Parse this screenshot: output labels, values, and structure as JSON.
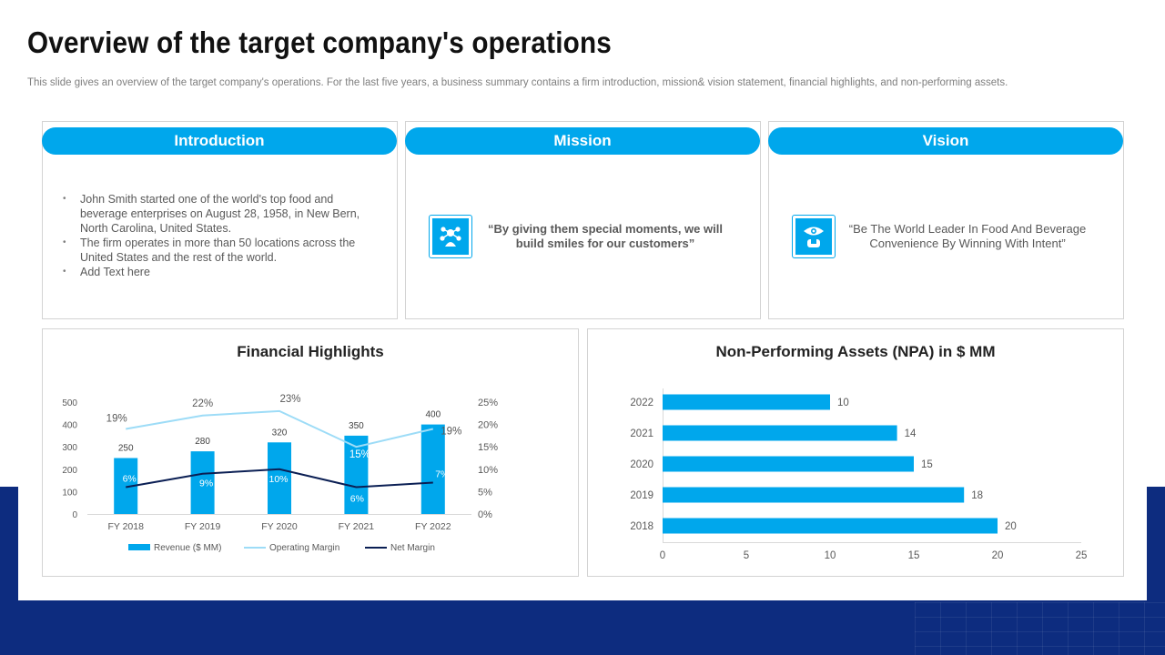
{
  "header": {
    "title": "Overview of the target company's operations",
    "subtitle": "This slide gives an overview of the target company's operations. For the last five years,  a business summary contains a firm introduction, mission& vision statement, financial highlights, and non-performing assets."
  },
  "introduction": {
    "heading": "Introduction",
    "bullets": [
      "John Smith started one of the world's  top food and beverage  enterprises on August 28, 1958, in New Bern, North Carolina,  United States.",
      "The firm operates in more than 50 locations across the United States and the rest of the world.",
      "Add Text here"
    ]
  },
  "mission": {
    "heading": "Mission",
    "icon": "team-network-icon",
    "quote": "“By giving them special moments,  we will build smiles for our customers”"
  },
  "vision": {
    "heading": "Vision",
    "icon": "eye-presenter-icon",
    "quote": "“Be The  World Leader  In Food And Beverage Convenience  By Winning With Intent”"
  },
  "colors": {
    "accent": "#00a7ec",
    "navy": "#0d2c7f",
    "line_light": "#9ddcf7",
    "line_dark": "#0b1f54"
  },
  "chart_data": [
    {
      "type": "bar",
      "title": "Financial Highlights",
      "categories": [
        "FY 2018",
        "FY 2019",
        "FY 2020",
        "FY 2021",
        "FY 2022"
      ],
      "series": [
        {
          "name": "Revenue ($ MM)",
          "kind": "bar",
          "axis": "left",
          "values": [
            250,
            280,
            320,
            350,
            400
          ],
          "labels": [
            "250",
            "280",
            "320",
            "350",
            "400"
          ]
        },
        {
          "name": "Operating Margin",
          "kind": "line",
          "axis": "right",
          "values": [
            19,
            22,
            23,
            15,
            19
          ],
          "labels": [
            "19%",
            "22%",
            "23%",
            "15%",
            "19%"
          ]
        },
        {
          "name": "Net Margin",
          "kind": "line",
          "axis": "right",
          "values": [
            6,
            9,
            10,
            6,
            7
          ],
          "labels": [
            "6%",
            "9%",
            "10%",
            "6%",
            "7%"
          ]
        }
      ],
      "y_left": {
        "min": 0,
        "max": 500,
        "ticks": [
          "0",
          "100",
          "200",
          "300",
          "400",
          "500"
        ]
      },
      "y_right": {
        "min": 0,
        "max": 25,
        "ticks": [
          "0%",
          "5%",
          "10%",
          "15%",
          "20%",
          "25%"
        ]
      },
      "legend_position": "bottom",
      "grid": false
    },
    {
      "type": "bar",
      "orientation": "horizontal",
      "title": "Non-Performing Assets (NPA) in $ MM",
      "categories": [
        "2022",
        "2021",
        "2020",
        "2019",
        "2018"
      ],
      "values": [
        10,
        14,
        15,
        18,
        20
      ],
      "labels": [
        "10",
        "14",
        "15",
        "18",
        "20"
      ],
      "xlim": [
        0,
        25
      ],
      "x_ticks": [
        "0",
        "5",
        "10",
        "15",
        "20",
        "25"
      ],
      "grid": false
    }
  ]
}
